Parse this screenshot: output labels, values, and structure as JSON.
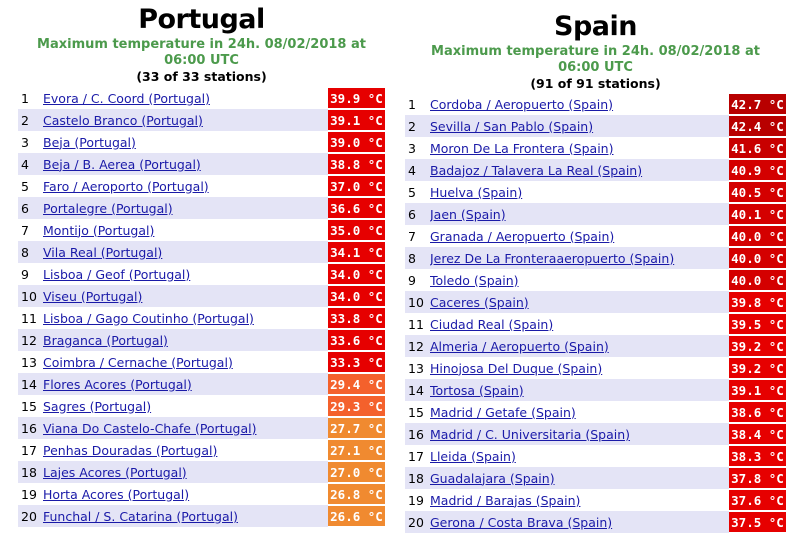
{
  "portugal": {
    "title": "Portugal",
    "subtitle_line1": "Maximum temperature in 24h. 08/02/2018 at",
    "subtitle_line2": "06:00 UTC",
    "count": "(33 of 33 stations)",
    "rows": [
      {
        "rank": "1",
        "name": "Evora / C. Coord (Portugal)",
        "temp": "39.9 °C",
        "color": "#e60000"
      },
      {
        "rank": "2",
        "name": "Castelo Branco (Portugal)",
        "temp": "39.1 °C",
        "color": "#e60000"
      },
      {
        "rank": "3",
        "name": "Beja (Portugal)",
        "temp": "39.0 °C",
        "color": "#e60000"
      },
      {
        "rank": "4",
        "name": "Beja / B. Aerea (Portugal)",
        "temp": "38.8 °C",
        "color": "#e60000"
      },
      {
        "rank": "5",
        "name": "Faro / Aeroporto (Portugal)",
        "temp": "37.0 °C",
        "color": "#e60000"
      },
      {
        "rank": "6",
        "name": "Portalegre (Portugal)",
        "temp": "36.6 °C",
        "color": "#e60000"
      },
      {
        "rank": "7",
        "name": "Montijo (Portugal)",
        "temp": "35.0 °C",
        "color": "#e60000"
      },
      {
        "rank": "8",
        "name": "Vila Real (Portugal)",
        "temp": "34.1 °C",
        "color": "#e60000"
      },
      {
        "rank": "9",
        "name": "Lisboa / Geof (Portugal)",
        "temp": "34.0 °C",
        "color": "#e60000"
      },
      {
        "rank": "10",
        "name": "Viseu (Portugal)",
        "temp": "34.0 °C",
        "color": "#e60000"
      },
      {
        "rank": "11",
        "name": "Lisboa / Gago Coutinho (Portugal)",
        "temp": "33.8 °C",
        "color": "#e60000"
      },
      {
        "rank": "12",
        "name": "Braganca (Portugal)",
        "temp": "33.6 °C",
        "color": "#e60000"
      },
      {
        "rank": "13",
        "name": "Coimbra / Cernache (Portugal)",
        "temp": "33.3 °C",
        "color": "#e60000"
      },
      {
        "rank": "14",
        "name": "Flores Acores (Portugal)",
        "temp": "29.4 °C",
        "color": "#f4612c"
      },
      {
        "rank": "15",
        "name": "Sagres (Portugal)",
        "temp": "29.3 °C",
        "color": "#f4612c"
      },
      {
        "rank": "16",
        "name": "Viana Do Castelo-Chafe (Portugal)",
        "temp": "27.7 °C",
        "color": "#f08a30"
      },
      {
        "rank": "17",
        "name": "Penhas Douradas (Portugal)",
        "temp": "27.1 °C",
        "color": "#f08a30"
      },
      {
        "rank": "18",
        "name": "Lajes Acores (Portugal)",
        "temp": "27.0 °C",
        "color": "#f08a30"
      },
      {
        "rank": "19",
        "name": "Horta Acores (Portugal)",
        "temp": "26.8 °C",
        "color": "#f08a30"
      },
      {
        "rank": "20",
        "name": "Funchal / S. Catarina (Portugal)",
        "temp": "26.6 °C",
        "color": "#f08a30"
      }
    ]
  },
  "spain": {
    "title": "Spain",
    "subtitle_line1": "Maximum temperature in 24h. 08/02/2018 at",
    "subtitle_line2": "06:00 UTC",
    "count": "(91 of 91 stations)",
    "rows": [
      {
        "rank": "1",
        "name": "Cordoba / Aeropuerto (Spain)",
        "temp": "42.7 °C",
        "color": "#b80000"
      },
      {
        "rank": "2",
        "name": "Sevilla / San Pablo (Spain)",
        "temp": "42.4 °C",
        "color": "#b80000"
      },
      {
        "rank": "3",
        "name": "Moron De La Frontera (Spain)",
        "temp": "41.6 °C",
        "color": "#c80000"
      },
      {
        "rank": "4",
        "name": "Badajoz / Talavera La Real (Spain)",
        "temp": "40.9 °C",
        "color": "#d40000"
      },
      {
        "rank": "5",
        "name": "Huelva (Spain)",
        "temp": "40.5 °C",
        "color": "#d40000"
      },
      {
        "rank": "6",
        "name": "Jaen (Spain)",
        "temp": "40.1 °C",
        "color": "#d40000"
      },
      {
        "rank": "7",
        "name": "Granada / Aeropuerto (Spain)",
        "temp": "40.0 °C",
        "color": "#d40000"
      },
      {
        "rank": "8",
        "name": "Jerez De La Fronteraaeropuerto (Spain)",
        "temp": "40.0 °C",
        "color": "#d40000"
      },
      {
        "rank": "9",
        "name": "Toledo (Spain)",
        "temp": "40.0 °C",
        "color": "#d40000"
      },
      {
        "rank": "10",
        "name": "Caceres (Spain)",
        "temp": "39.8 °C",
        "color": "#e60000"
      },
      {
        "rank": "11",
        "name": "Ciudad Real (Spain)",
        "temp": "39.5 °C",
        "color": "#e60000"
      },
      {
        "rank": "12",
        "name": "Almeria / Aeropuerto (Spain)",
        "temp": "39.2 °C",
        "color": "#e60000"
      },
      {
        "rank": "13",
        "name": "Hinojosa Del Duque (Spain)",
        "temp": "39.2 °C",
        "color": "#e60000"
      },
      {
        "rank": "14",
        "name": "Tortosa (Spain)",
        "temp": "39.1 °C",
        "color": "#e60000"
      },
      {
        "rank": "15",
        "name": "Madrid / Getafe (Spain)",
        "temp": "38.6 °C",
        "color": "#e60000"
      },
      {
        "rank": "16",
        "name": "Madrid / C. Universitaria (Spain)",
        "temp": "38.4 °C",
        "color": "#e60000"
      },
      {
        "rank": "17",
        "name": "Lleida (Spain)",
        "temp": "38.3 °C",
        "color": "#e60000"
      },
      {
        "rank": "18",
        "name": "Guadalajara (Spain)",
        "temp": "37.8 °C",
        "color": "#e60000"
      },
      {
        "rank": "19",
        "name": "Madrid / Barajas (Spain)",
        "temp": "37.6 °C",
        "color": "#e60000"
      },
      {
        "rank": "20",
        "name": "Gerona / Costa Brava (Spain)",
        "temp": "37.5 °C",
        "color": "#e60000"
      }
    ]
  }
}
